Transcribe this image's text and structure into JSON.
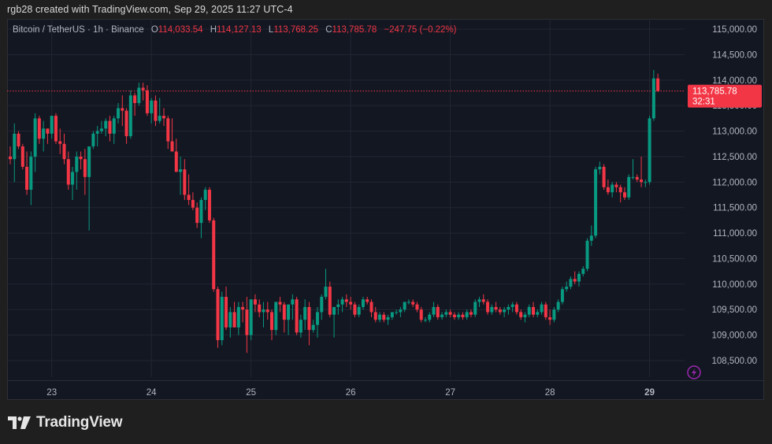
{
  "header": {
    "credit": "rgb28 created with TradingView.com, Sep 29, 2025 11:27 UTC-4"
  },
  "legend": {
    "symbol": "Bitcoin / TetherUS · 1h · Binance",
    "open_label": "O",
    "open": "114,033.54",
    "high_label": "H",
    "high": "114,127.13",
    "low_label": "L",
    "low": "113,768.25",
    "close_label": "C",
    "close": "113,785.78",
    "change": "−247.75 (−0.22%)"
  },
  "price_badge": {
    "price": "113,785.78",
    "countdown": "32:31"
  },
  "footer": {
    "brand": "TradingView"
  },
  "colors": {
    "up": "#089981",
    "down": "#f23645",
    "background": "#131722",
    "grid": "#232632",
    "axis_text": "#b2b5be",
    "badge": "#f23645",
    "lightning": "#9c27b0"
  },
  "chart_data": {
    "type": "candlestick",
    "title": "Bitcoin / TetherUS · 1h · Binance",
    "xlabel": "",
    "ylabel": "",
    "grid": true,
    "y_ticks": [
      "115,000.00",
      "114,500.00",
      "114,000.00",
      "113,500.00",
      "113,000.00",
      "112,500.00",
      "112,000.00",
      "111,500.00",
      "111,000.00",
      "110,500.00",
      "110,000.00",
      "109,500.00",
      "109,000.00",
      "108,500.00"
    ],
    "y_tick_values": [
      115000,
      114500,
      114000,
      113500,
      113000,
      112500,
      112000,
      111500,
      111000,
      110500,
      110000,
      109500,
      109000,
      108500
    ],
    "x_ticks": [
      "23",
      "24",
      "25",
      "26",
      "27",
      "28",
      "29"
    ],
    "x_tick_index": [
      10,
      34,
      58,
      82,
      106,
      130,
      154
    ],
    "ylim": [
      108300,
      115200
    ],
    "last_price": 113785.78,
    "ohlc": [
      [
        112500,
        112700,
        112350,
        112450
      ],
      [
        112450,
        113150,
        112000,
        112950
      ],
      [
        112950,
        113000,
        112650,
        112700
      ],
      [
        112700,
        112750,
        112250,
        112300
      ],
      [
        112300,
        112600,
        111750,
        111850
      ],
      [
        111850,
        112600,
        111550,
        112500
      ],
      [
        112500,
        113350,
        112200,
        113250
      ],
      [
        113250,
        113300,
        112750,
        112850
      ],
      [
        112850,
        113200,
        112600,
        113050
      ],
      [
        113050,
        113050,
        112750,
        112950
      ],
      [
        112950,
        113300,
        112850,
        113300
      ],
      [
        113300,
        113350,
        112750,
        112800
      ],
      [
        112800,
        113050,
        112550,
        112750
      ],
      [
        112750,
        112950,
        112350,
        112450
      ],
      [
        112450,
        112600,
        111850,
        111950
      ],
      [
        111950,
        112300,
        111650,
        112200
      ],
      [
        112200,
        112600,
        111850,
        112500
      ],
      [
        112500,
        112600,
        112250,
        112450
      ],
      [
        112450,
        112650,
        111750,
        112100
      ],
      [
        112100,
        112350,
        111050,
        112700
      ],
      [
        112700,
        113000,
        112650,
        112950
      ],
      [
        112950,
        113100,
        112700,
        113000
      ],
      [
        113000,
        113200,
        112950,
        113050
      ],
      [
        113050,
        113250,
        112900,
        113200
      ],
      [
        113200,
        113300,
        112800,
        112950
      ],
      [
        112950,
        113300,
        112750,
        113250
      ],
      [
        113250,
        113550,
        113150,
        113450
      ],
      [
        113450,
        113700,
        113100,
        113400
      ],
      [
        113400,
        113450,
        112750,
        112900
      ],
      [
        112900,
        113800,
        112850,
        113700
      ],
      [
        113700,
        113750,
        113300,
        113550
      ],
      [
        113550,
        113950,
        113500,
        113850
      ],
      [
        113850,
        113950,
        113600,
        113800
      ],
      [
        113800,
        113900,
        113300,
        113350
      ],
      [
        113350,
        113650,
        113150,
        113600
      ],
      [
        113600,
        113700,
        113100,
        113200
      ],
      [
        113200,
        113650,
        113150,
        113300
      ],
      [
        113300,
        113450,
        113100,
        113250
      ],
      [
        113250,
        113300,
        112650,
        112800
      ],
      [
        112800,
        113250,
        112600,
        112600
      ],
      [
        112600,
        112850,
        112200,
        112200
      ],
      [
        112200,
        112500,
        111750,
        112250
      ],
      [
        112250,
        112450,
        111650,
        111750
      ],
      [
        111750,
        112150,
        111550,
        111650
      ],
      [
        111650,
        111800,
        111450,
        111500
      ],
      [
        111500,
        111600,
        111100,
        111200
      ],
      [
        111200,
        111700,
        110900,
        111650
      ],
      [
        111650,
        111900,
        111450,
        111850
      ],
      [
        111850,
        111900,
        111200,
        111250
      ],
      [
        111250,
        111300,
        109850,
        109900
      ],
      [
        109900,
        109950,
        108750,
        108900
      ],
      [
        108900,
        109850,
        108800,
        109750
      ],
      [
        109750,
        109950,
        109100,
        109150
      ],
      [
        109150,
        109550,
        108950,
        109450
      ],
      [
        109450,
        109650,
        109150,
        109150
      ],
      [
        109150,
        109650,
        109000,
        109550
      ],
      [
        109550,
        109650,
        109250,
        109500
      ],
      [
        109500,
        109750,
        108650,
        109000
      ],
      [
        109000,
        109700,
        108900,
        109700
      ],
      [
        109700,
        109800,
        109450,
        109600
      ],
      [
        109600,
        109700,
        109350,
        109450
      ],
      [
        109450,
        109650,
        109150,
        109500
      ],
      [
        109500,
        109650,
        109300,
        109450
      ],
      [
        109450,
        109500,
        108900,
        109100
      ],
      [
        109100,
        109650,
        109000,
        109650
      ],
      [
        109650,
        109750,
        109450,
        109600
      ],
      [
        109600,
        109650,
        109050,
        109300
      ],
      [
        109300,
        109600,
        109000,
        109600
      ],
      [
        109600,
        109800,
        109300,
        109700
      ],
      [
        109700,
        109750,
        109000,
        109050
      ],
      [
        109050,
        109400,
        108950,
        109300
      ],
      [
        109300,
        109700,
        109100,
        109550
      ],
      [
        109550,
        109650,
        108800,
        109100
      ],
      [
        109100,
        109300,
        109050,
        109200
      ],
      [
        109200,
        109550,
        108950,
        109450
      ],
      [
        109450,
        109800,
        109300,
        109750
      ],
      [
        109750,
        110300,
        109700,
        109950
      ],
      [
        109950,
        110050,
        109350,
        109400
      ],
      [
        109400,
        109550,
        108950,
        109550
      ],
      [
        109550,
        109700,
        109400,
        109600
      ],
      [
        109600,
        109750,
        109450,
        109700
      ],
      [
        109700,
        109800,
        109550,
        109650
      ],
      [
        109650,
        109750,
        109500,
        109600
      ],
      [
        109600,
        109650,
        109350,
        109400
      ],
      [
        109400,
        109600,
        109350,
        109550
      ],
      [
        109550,
        109750,
        109500,
        109700
      ],
      [
        109700,
        109750,
        109600,
        109650
      ],
      [
        109650,
        109700,
        109350,
        109450
      ],
      [
        109450,
        109550,
        109250,
        109300
      ],
      [
        109300,
        109450,
        109250,
        109400
      ],
      [
        109400,
        109450,
        109250,
        109300
      ],
      [
        109300,
        109400,
        109200,
        109350
      ],
      [
        109350,
        109450,
        109300,
        109450
      ],
      [
        109450,
        109500,
        109400,
        109450
      ],
      [
        109450,
        109550,
        109350,
        109500
      ],
      [
        109500,
        109650,
        109450,
        109650
      ],
      [
        109650,
        109700,
        109600,
        109650
      ],
      [
        109650,
        109700,
        109550,
        109600
      ],
      [
        109600,
        109650,
        109450,
        109500
      ],
      [
        109500,
        109550,
        109250,
        109300
      ],
      [
        109300,
        109350,
        109250,
        109300
      ],
      [
        109300,
        109450,
        109250,
        109400
      ],
      [
        109400,
        109650,
        109350,
        109550
      ],
      [
        109550,
        109600,
        109300,
        109350
      ],
      [
        109350,
        109450,
        109300,
        109400
      ],
      [
        109400,
        109500,
        109350,
        109450
      ],
      [
        109450,
        109500,
        109350,
        109400
      ],
      [
        109400,
        109450,
        109300,
        109350
      ],
      [
        109350,
        109450,
        109300,
        109400
      ],
      [
        109400,
        109450,
        109300,
        109350
      ],
      [
        109350,
        109500,
        109300,
        109450
      ],
      [
        109450,
        109500,
        109350,
        109400
      ],
      [
        109400,
        109700,
        109350,
        109650
      ],
      [
        109650,
        109750,
        109550,
        109700
      ],
      [
        109700,
        109800,
        109600,
        109650
      ],
      [
        109650,
        109700,
        109400,
        109450
      ],
      [
        109450,
        109600,
        109400,
        109550
      ],
      [
        109550,
        109650,
        109450,
        109500
      ],
      [
        109500,
        109550,
        109400,
        109450
      ],
      [
        109450,
        109550,
        109350,
        109500
      ],
      [
        109500,
        109600,
        109400,
        109550
      ],
      [
        109550,
        109650,
        109450,
        109600
      ],
      [
        109600,
        109650,
        109400,
        109450
      ],
      [
        109450,
        109500,
        109300,
        109350
      ],
      [
        109350,
        109450,
        109250,
        109400
      ],
      [
        109400,
        109600,
        109350,
        109550
      ],
      [
        109550,
        109650,
        109350,
        109400
      ],
      [
        109400,
        109500,
        109350,
        109450
      ],
      [
        109450,
        109650,
        109400,
        109600
      ],
      [
        109600,
        109650,
        109300,
        109350
      ],
      [
        109350,
        109500,
        109200,
        109300
      ],
      [
        109300,
        109550,
        109250,
        109500
      ],
      [
        109500,
        109700,
        109450,
        109650
      ],
      [
        109650,
        109950,
        109600,
        109900
      ],
      [
        109900,
        110050,
        109850,
        109950
      ],
      [
        109950,
        110150,
        109900,
        110100
      ],
      [
        110100,
        110250,
        110000,
        110050
      ],
      [
        110050,
        110250,
        109950,
        110200
      ],
      [
        110200,
        110350,
        110150,
        110300
      ],
      [
        110300,
        110900,
        110250,
        110850
      ],
      [
        110850,
        111150,
        110750,
        110950
      ],
      [
        110950,
        112300,
        110900,
        112250
      ],
      [
        112250,
        112400,
        112150,
        112300
      ],
      [
        112300,
        112350,
        111850,
        111900
      ],
      [
        111900,
        112050,
        111750,
        111800
      ],
      [
        111800,
        112000,
        111700,
        111950
      ],
      [
        111950,
        112000,
        111800,
        111900
      ],
      [
        111900,
        111950,
        111600,
        111800
      ],
      [
        111800,
        111900,
        111650,
        111700
      ],
      [
        111700,
        112150,
        111650,
        112100
      ],
      [
        112100,
        112450,
        112050,
        112100
      ],
      [
        112100,
        112150,
        112000,
        112050
      ],
      [
        112050,
        112500,
        111900,
        112000
      ],
      [
        112000,
        112050,
        111900,
        112000
      ],
      [
        112000,
        113300,
        111950,
        113250
      ],
      [
        113250,
        114200,
        113200,
        114033.54
      ],
      [
        114033.54,
        114127.13,
        113768.25,
        113785.78
      ]
    ]
  }
}
